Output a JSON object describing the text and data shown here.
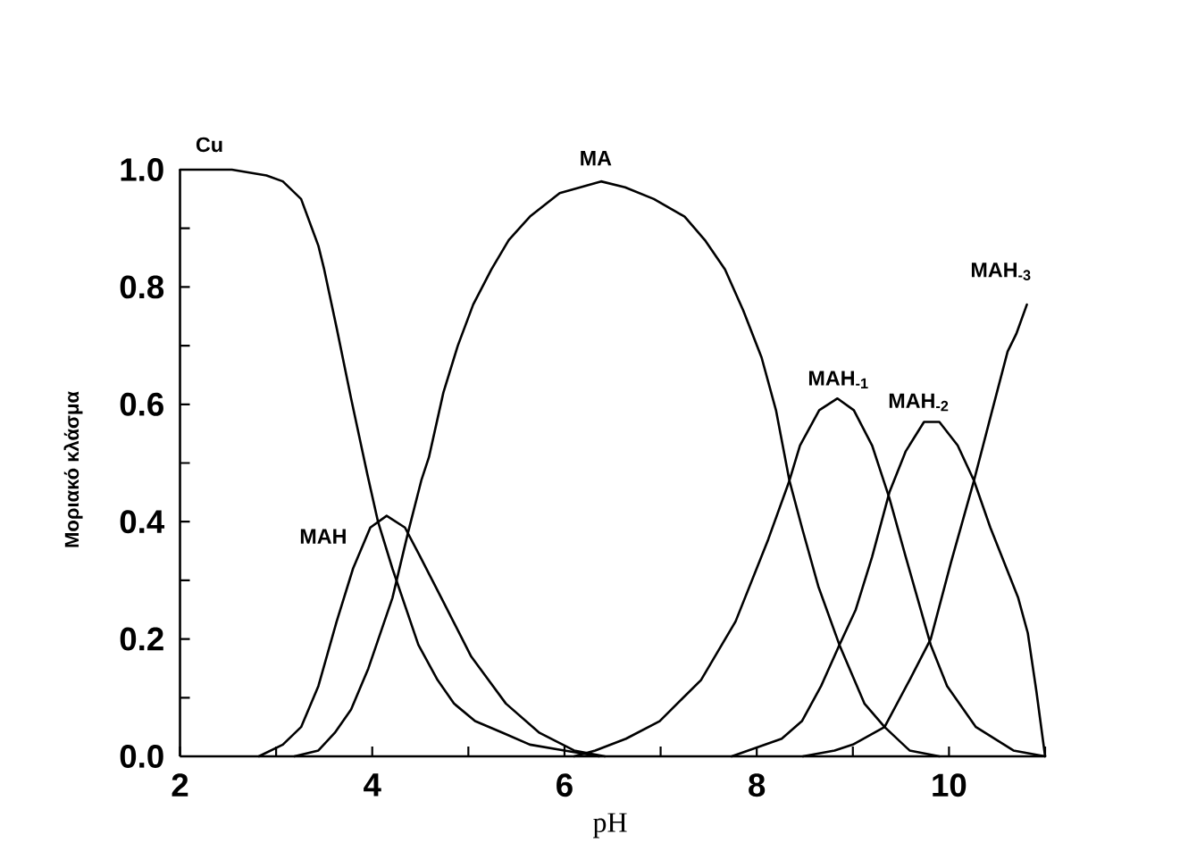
{
  "chart_data": {
    "type": "line",
    "xlabel": "pH",
    "ylabel": "Μοριακό κλάσμα",
    "xlim": [
      2,
      11
    ],
    "ylim": [
      0,
      1
    ],
    "xticks": [
      2,
      {
        "value": 3,
        "label": null
      },
      4,
      {
        "value": 5,
        "label": null
      },
      6,
      {
        "value": 7,
        "label": null
      },
      8,
      {
        "value": 9,
        "label": null
      },
      10,
      {
        "value": 11,
        "label": null
      }
    ],
    "yticks": [
      {
        "value": 0,
        "label": "0.0"
      },
      {
        "value": 0.1,
        "label": null
      },
      0.2,
      {
        "value": 0.3,
        "label": null
      },
      0.4,
      {
        "value": 0.5,
        "label": null
      },
      0.6,
      {
        "value": 0.7,
        "label": null
      },
      0.8,
      {
        "value": 0.9,
        "label": null
      },
      {
        "value": 1,
        "label": "1.0"
      }
    ],
    "marker": "none",
    "line_style": "solid",
    "series": [
      {
        "name": "Cu",
        "color": "#000000",
        "x": [
          2,
          2.54,
          2.9,
          3.07,
          3.26,
          3.44,
          3.5,
          3.63,
          3.78,
          3.95,
          4.06,
          4.21,
          4.48,
          4.68,
          4.85,
          5.07,
          5.36,
          5.64,
          6.0,
          6.36
        ],
        "values": [
          1,
          1,
          0.99,
          0.98,
          0.95,
          0.87,
          0.83,
          0.73,
          0.61,
          0.48,
          0.4,
          0.32,
          0.19,
          0.13,
          0.09,
          0.06,
          0.04,
          0.02,
          0.01,
          0
        ]
      },
      {
        "name": "MAH",
        "color": "#000000",
        "x": [
          2.82,
          3.07,
          3.26,
          3.44,
          3.63,
          3.8,
          3.98,
          4.15,
          4.34,
          4.5,
          4.75,
          5.03,
          5.39,
          5.74,
          6.1,
          6.42
        ],
        "values": [
          0,
          0.02,
          0.05,
          0.12,
          0.23,
          0.32,
          0.39,
          0.41,
          0.39,
          0.34,
          0.26,
          0.17,
          0.09,
          0.04,
          0.01,
          0
        ]
      },
      {
        "name": "MA",
        "color": "#000000",
        "x": [
          3.19,
          3.44,
          3.61,
          3.78,
          3.96,
          4.21,
          4.37,
          4.51,
          4.59,
          4.74,
          4.89,
          5.05,
          5.24,
          5.42,
          5.64,
          5.95,
          6.38,
          6.63,
          6.93,
          7.25,
          7.46,
          7.67,
          7.86,
          8.05,
          8.2,
          8.34,
          8.47,
          8.64,
          8.86,
          9.12,
          9.33,
          9.59,
          9.9
        ],
        "values": [
          0,
          0.01,
          0.04,
          0.08,
          0.15,
          0.27,
          0.38,
          0.47,
          0.51,
          0.62,
          0.7,
          0.77,
          0.83,
          0.88,
          0.92,
          0.96,
          0.98,
          0.97,
          0.95,
          0.92,
          0.88,
          0.83,
          0.76,
          0.68,
          0.59,
          0.47,
          0.39,
          0.29,
          0.19,
          0.09,
          0.05,
          0.01,
          0
        ]
      },
      {
        "name": "MAH$_{-1}$",
        "color": "#000000",
        "x": [
          6.1,
          6.32,
          6.64,
          6.99,
          7.42,
          7.78,
          8.12,
          8.34,
          8.45,
          8.65,
          8.84,
          9.01,
          9.2,
          9.38,
          9.55,
          9.81,
          9.98,
          10.28,
          10.67,
          11
        ],
        "values": [
          0,
          0.01,
          0.03,
          0.06,
          0.13,
          0.23,
          0.37,
          0.47,
          0.53,
          0.59,
          0.61,
          0.59,
          0.53,
          0.44,
          0.34,
          0.19,
          0.12,
          0.05,
          0.01,
          0
        ]
      },
      {
        "name": "MAH$_{-2}$",
        "color": "#000000",
        "x": [
          7.74,
          8.26,
          8.47,
          8.67,
          8.86,
          9.03,
          9.2,
          9.38,
          9.55,
          9.74,
          9.9,
          10.09,
          10.26,
          10.43,
          10.72,
          10.82,
          10.91,
          11
        ],
        "values": [
          0,
          0.03,
          0.06,
          0.12,
          0.19,
          0.25,
          0.34,
          0.45,
          0.52,
          0.57,
          0.57,
          0.53,
          0.47,
          0.39,
          0.27,
          0.21,
          0.11,
          0
        ]
      },
      {
        "name": "MAH$_{-3}$",
        "color": "#000000",
        "x": [
          8.48,
          8.81,
          9.0,
          9.33,
          9.59,
          9.81,
          10.02,
          10.26,
          10.45,
          10.61,
          10.7,
          10.81
        ],
        "values": [
          0,
          0.01,
          0.02,
          0.05,
          0.13,
          0.2,
          0.33,
          0.47,
          0.59,
          0.69,
          0.72,
          0.77
        ]
      }
    ]
  }
}
